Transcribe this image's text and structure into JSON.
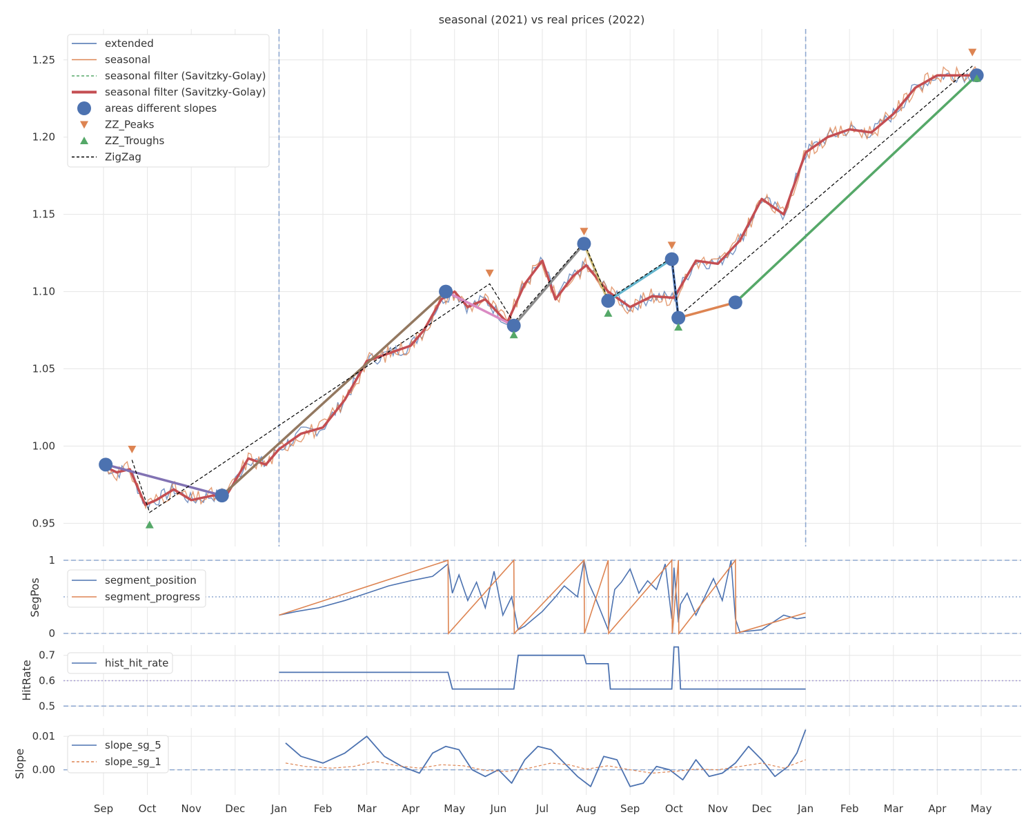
{
  "chart_data": [
    {
      "panel": "main",
      "type": "line",
      "title": "seasonal (2021) vs real prices (2022)",
      "ylabel": "",
      "ylim": [
        0.935,
        1.27
      ],
      "yticks": [
        "0.95",
        "1.00",
        "1.05",
        "1.10",
        "1.15",
        "1.20",
        "1.25"
      ],
      "legend": [
        "extended",
        "seasonal",
        "seasonal filter (Savitzky-Golay)",
        "seasonal filter (Savitzky-Golay)",
        "areas different slopes",
        "ZZ_Peaks",
        "ZZ_Troughs",
        "ZigZag"
      ],
      "legend_position": "upper-left",
      "vlines_month_index": [
        4,
        16
      ],
      "series": [
        {
          "name": "seasonal filter (Savitzky-Golay)",
          "x": [
            0.0,
            0.3,
            0.6,
            0.95,
            1.2,
            1.6,
            2.0,
            2.5,
            2.8,
            2.95,
            3.3,
            3.7,
            4.0,
            4.5,
            5.0,
            5.5,
            6.0,
            6.5,
            7.0,
            7.3,
            7.7,
            8.0,
            8.3,
            8.7,
            9.2,
            9.6,
            10.0,
            10.3,
            10.7,
            11.0,
            11.5,
            12.0,
            12.5,
            13.0,
            13.5,
            14.0,
            14.5,
            15.0,
            15.5,
            16.0,
            16.5,
            17.0,
            17.5,
            18.0,
            18.5,
            19.0,
            19.5,
            20.0
          ],
          "y": [
            0.987,
            0.983,
            0.985,
            0.962,
            0.965,
            0.972,
            0.965,
            0.968,
            0.968,
            0.975,
            0.992,
            0.988,
            0.998,
            1.008,
            1.012,
            1.03,
            1.055,
            1.06,
            1.065,
            1.075,
            1.095,
            1.1,
            1.09,
            1.095,
            1.08,
            1.105,
            1.12,
            1.095,
            1.11,
            1.117,
            1.1,
            1.09,
            1.097,
            1.096,
            1.12,
            1.118,
            1.133,
            1.16,
            1.15,
            1.19,
            1.2,
            1.205,
            1.203,
            1.215,
            1.232,
            1.24,
            1.24,
            1.24
          ]
        },
        {
          "name": "areas different slopes",
          "x": [
            0.05,
            2.7,
            7.8,
            9.35,
            10.95,
            11.5,
            12.95,
            13.1,
            14.4,
            19.9
          ],
          "y": [
            0.988,
            0.968,
            1.1,
            1.078,
            1.131,
            1.094,
            1.121,
            1.083,
            1.093,
            1.24
          ]
        },
        {
          "name": "ZigZag",
          "x": [
            0.65,
            1.05,
            8.8,
            9.35,
            10.95,
            11.5,
            12.95,
            13.1,
            19.8
          ],
          "y": [
            0.991,
            0.957,
            1.105,
            1.08,
            1.132,
            1.095,
            1.122,
            1.084,
            1.246
          ]
        },
        {
          "name": "ZZ_Peaks",
          "x": [
            0.65,
            8.8,
            10.95,
            12.95,
            19.8
          ],
          "y": [
            0.998,
            1.112,
            1.139,
            1.13,
            1.255
          ]
        },
        {
          "name": "ZZ_Troughs",
          "x": [
            1.05,
            9.35,
            11.5,
            13.1,
            19.9
          ],
          "y": [
            0.949,
            1.072,
            1.086,
            1.077,
            1.238
          ]
        }
      ]
    },
    {
      "panel": "segpos",
      "type": "line",
      "ylabel": "SegPos",
      "ylim": [
        0,
        1
      ],
      "yticks": [
        "0",
        "1"
      ],
      "legend": [
        "segment_position",
        "segment_progress"
      ],
      "legend_position": "upper-left",
      "series": [
        {
          "name": "segment_position",
          "x": [
            4.0,
            4.4,
            4.9,
            5.5,
            6.0,
            6.5,
            7.0,
            7.5,
            7.85,
            7.95,
            8.1,
            8.3,
            8.5,
            8.7,
            8.9,
            9.1,
            9.3,
            9.45,
            9.6,
            9.8,
            10.0,
            10.3,
            10.5,
            10.8,
            10.95,
            11.05,
            11.2,
            11.5,
            11.65,
            11.8,
            12.0,
            12.2,
            12.4,
            12.6,
            12.8,
            12.95,
            13.0,
            13.1,
            13.15,
            13.3,
            13.5,
            13.7,
            13.9,
            14.1,
            14.3,
            14.4,
            14.5,
            15.0,
            15.5,
            15.8,
            16.0
          ],
          "y": [
            0.25,
            0.3,
            0.35,
            0.45,
            0.55,
            0.65,
            0.72,
            0.78,
            0.95,
            0.55,
            0.8,
            0.45,
            0.7,
            0.35,
            0.85,
            0.25,
            0.5,
            0.05,
            0.1,
            0.2,
            0.3,
            0.5,
            0.65,
            0.5,
            1.0,
            0.7,
            0.5,
            0.05,
            0.6,
            0.7,
            0.88,
            0.55,
            0.72,
            0.6,
            0.95,
            0.2,
            0.9,
            0.15,
            0.4,
            0.55,
            0.25,
            0.5,
            0.75,
            0.45,
            1.0,
            0.2,
            0.02,
            0.05,
            0.25,
            0.2,
            0.22
          ]
        },
        {
          "name": "segment_progress",
          "x": [
            4.0,
            7.85,
            7.86,
            9.35,
            9.36,
            10.95,
            10.96,
            11.5,
            11.51,
            12.95,
            12.96,
            13.1,
            13.11,
            14.4,
            14.41,
            16.0
          ],
          "y": [
            0.25,
            1.0,
            0.0,
            1.0,
            0.0,
            1.0,
            0.0,
            1.0,
            0.0,
            1.0,
            0.0,
            1.0,
            0.0,
            1.0,
            0.0,
            0.28
          ]
        }
      ]
    },
    {
      "panel": "hitrate",
      "type": "line",
      "ylabel": "HitRate",
      "ylim": [
        0.46,
        0.74
      ],
      "yticks": [
        "0.5",
        "0.6",
        "0.7"
      ],
      "legend": [
        "hist_hit_rate"
      ],
      "legend_position": "upper-left",
      "series": [
        {
          "name": "hist_hit_rate",
          "x": [
            4.0,
            7.85,
            7.95,
            9.35,
            9.45,
            10.95,
            11.0,
            11.5,
            11.55,
            12.95,
            13.0,
            13.1,
            13.15,
            16.0
          ],
          "y": [
            0.633,
            0.633,
            0.567,
            0.567,
            0.7,
            0.7,
            0.667,
            0.667,
            0.567,
            0.567,
            0.733,
            0.733,
            0.567,
            0.567
          ]
        }
      ]
    },
    {
      "panel": "slope",
      "type": "line",
      "ylabel": "Slope",
      "ylim": [
        -0.0075,
        0.0125
      ],
      "yticks": [
        "0.00",
        "0.01"
      ],
      "legend": [
        "slope_sg_5",
        "slope_sg_1"
      ],
      "legend_position": "upper-left",
      "series": [
        {
          "name": "slope_sg_5",
          "x": [
            4.15,
            4.5,
            5.0,
            5.5,
            6.0,
            6.4,
            6.8,
            7.2,
            7.5,
            7.8,
            8.1,
            8.4,
            8.7,
            9.0,
            9.3,
            9.6,
            9.9,
            10.2,
            10.5,
            10.8,
            11.1,
            11.4,
            11.7,
            12.0,
            12.3,
            12.6,
            12.9,
            13.2,
            13.5,
            13.8,
            14.1,
            14.4,
            14.7,
            15.0,
            15.3,
            15.6,
            15.8,
            16.0
          ],
          "y": [
            0.008,
            0.004,
            0.002,
            0.005,
            0.01,
            0.004,
            0.001,
            -0.001,
            0.005,
            0.007,
            0.006,
            0.0,
            -0.002,
            0.0,
            -0.004,
            0.003,
            0.007,
            0.006,
            0.002,
            -0.002,
            -0.005,
            0.004,
            0.003,
            -0.005,
            -0.004,
            0.001,
            0.0,
            -0.003,
            0.003,
            -0.002,
            -0.001,
            0.002,
            0.007,
            0.003,
            -0.002,
            0.001,
            0.005,
            0.012
          ]
        },
        {
          "name": "slope_sg_1",
          "x": [
            4.15,
            4.6,
            5.2,
            5.7,
            6.2,
            6.7,
            7.2,
            7.7,
            8.2,
            8.7,
            9.2,
            9.7,
            10.2,
            10.6,
            11.0,
            11.5,
            12.0,
            12.5,
            13.0,
            13.5,
            14.0,
            14.5,
            15.0,
            15.5,
            16.0
          ],
          "y": [
            0.002,
            0.001,
            0.0005,
            0.001,
            0.0025,
            0.0012,
            0.0005,
            0.0015,
            0.0012,
            -0.0002,
            -0.0005,
            0.0005,
            0.002,
            0.0015,
            0.0002,
            0.0012,
            0.0,
            -0.001,
            -0.0005,
            0.0002,
            0.0,
            0.001,
            0.002,
            0.0005,
            0.003
          ]
        }
      ]
    }
  ],
  "x_months": [
    "Sep",
    "Oct",
    "Nov",
    "Dec",
    "Jan",
    "Feb",
    "Mar",
    "Apr",
    "May",
    "Jun",
    "Jul",
    "Aug",
    "Sep",
    "Oct",
    "Nov",
    "Dec",
    "Jan",
    "Feb",
    "Mar",
    "Apr",
    "May"
  ],
  "colors": {
    "extended": "#4c72b0",
    "seasonal": "#dd8452",
    "filter_thin": "#55a868",
    "filter_thick": "#c44e52",
    "points": "#4c72b0",
    "peaks": "#dd8452",
    "troughs": "#55a868",
    "zigzag": "#000000"
  }
}
